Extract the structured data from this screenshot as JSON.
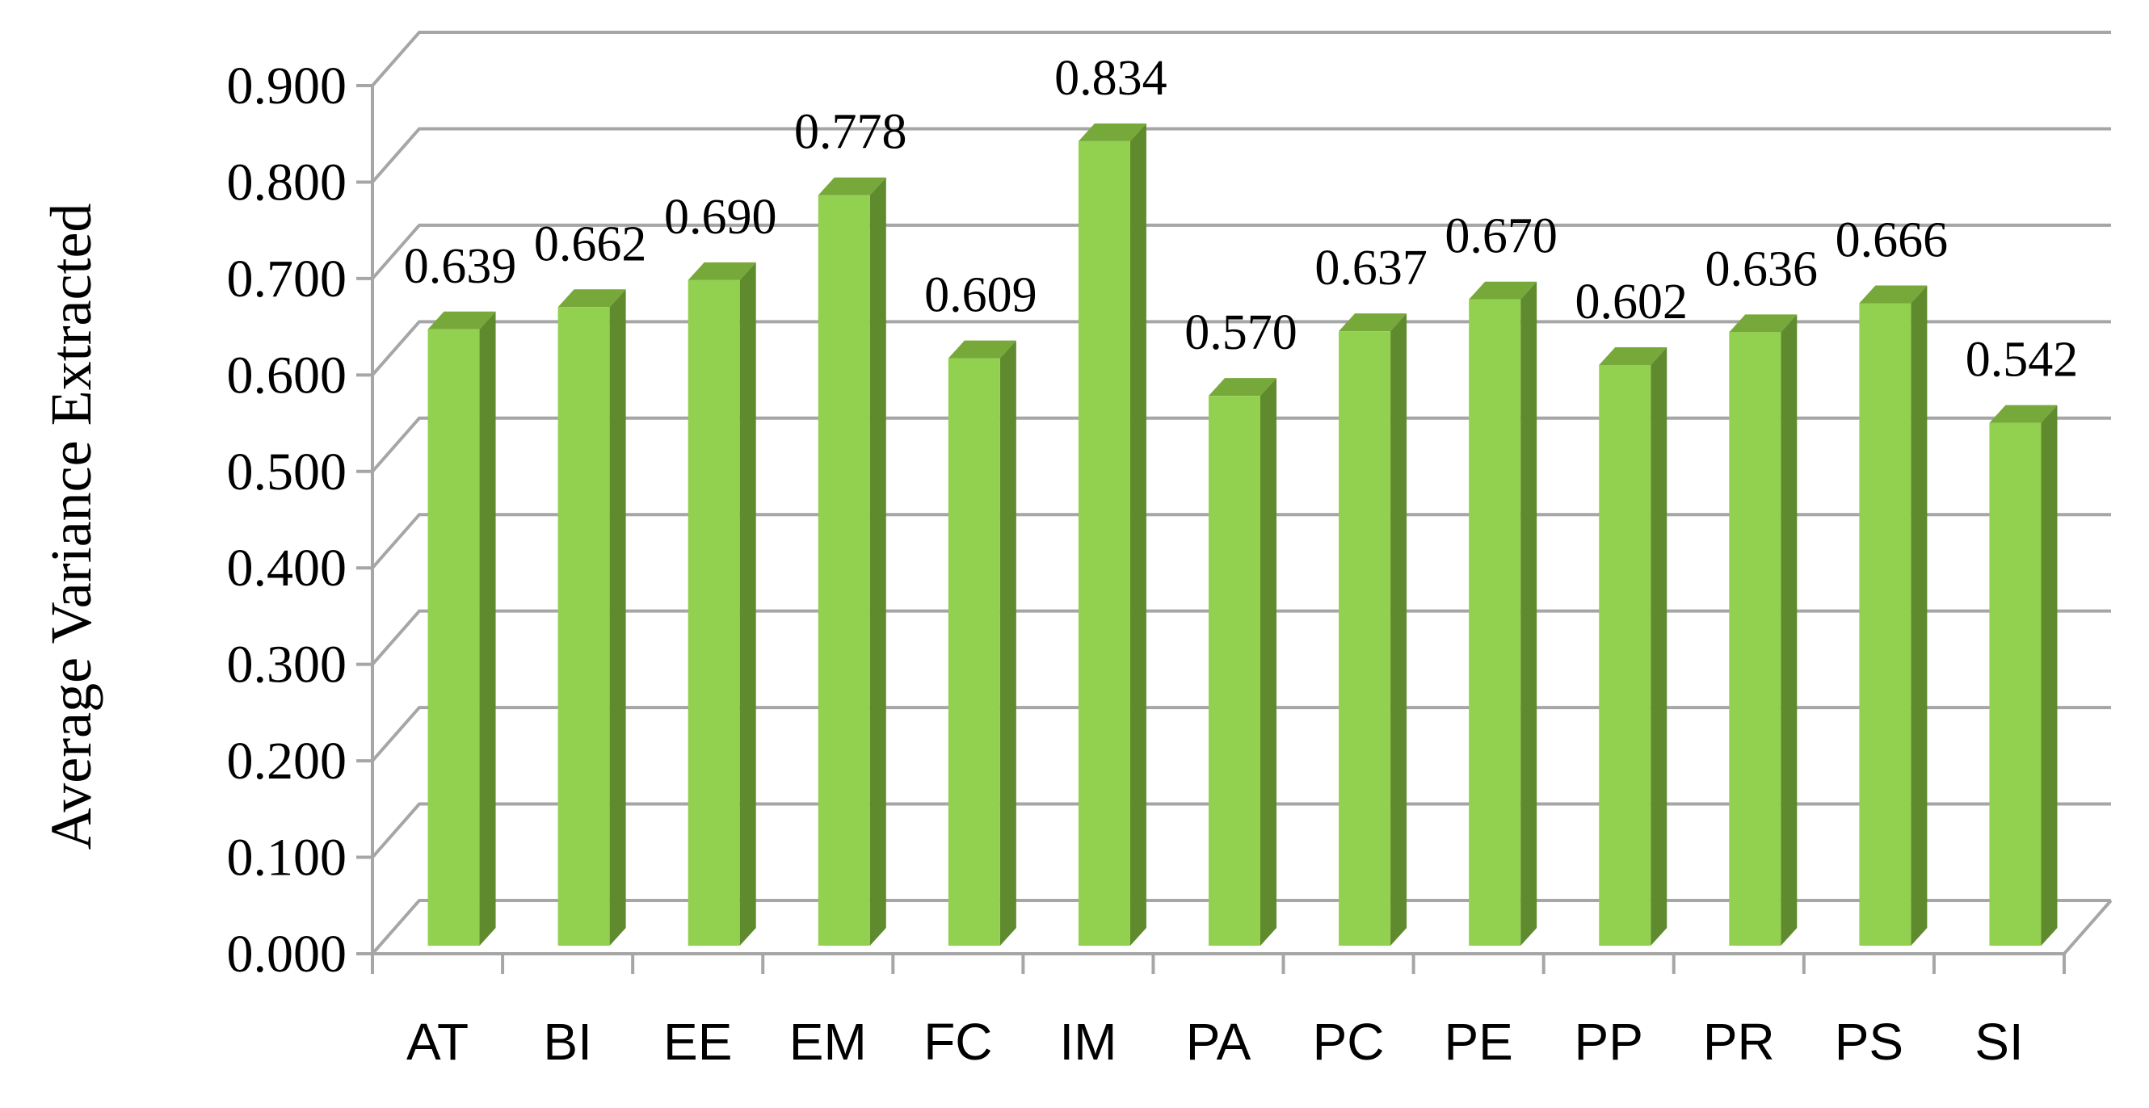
{
  "chart_data": {
    "type": "bar",
    "title": "",
    "xlabel": "",
    "ylabel": "Average Variance Extracted",
    "categories": [
      "AT",
      "BI",
      "EE",
      "EM",
      "FC",
      "IM",
      "PA",
      "PC",
      "PE",
      "PP",
      "PR",
      "PS",
      "SI"
    ],
    "values": [
      0.639,
      0.662,
      0.69,
      0.778,
      0.609,
      0.834,
      0.57,
      0.637,
      0.67,
      0.602,
      0.636,
      0.666,
      0.542
    ],
    "value_labels": [
      "0.639",
      "0.662",
      "0.690",
      "0.778",
      "0.609",
      "0.834",
      "0.570",
      "0.637",
      "0.670",
      "0.602",
      "0.636",
      "0.666",
      "0.542"
    ],
    "yticks": [
      0,
      0.1,
      0.2,
      0.3,
      0.4,
      0.5,
      0.6,
      0.7,
      0.8,
      0.9
    ],
    "ytick_labels": [
      "0.000",
      "0.100",
      "0.200",
      "0.300",
      "0.400",
      "0.500",
      "0.600",
      "0.700",
      "0.800",
      "0.900"
    ],
    "ylim": [
      0,
      0.9
    ],
    "grid": true,
    "style": "3d-column",
    "legend": "none",
    "colors": {
      "bar_front": "#92d050",
      "bar_side": "#5f8a2e",
      "bar_top": "#76a83a",
      "grid": "#a6a6a6",
      "text": "#000000"
    }
  }
}
